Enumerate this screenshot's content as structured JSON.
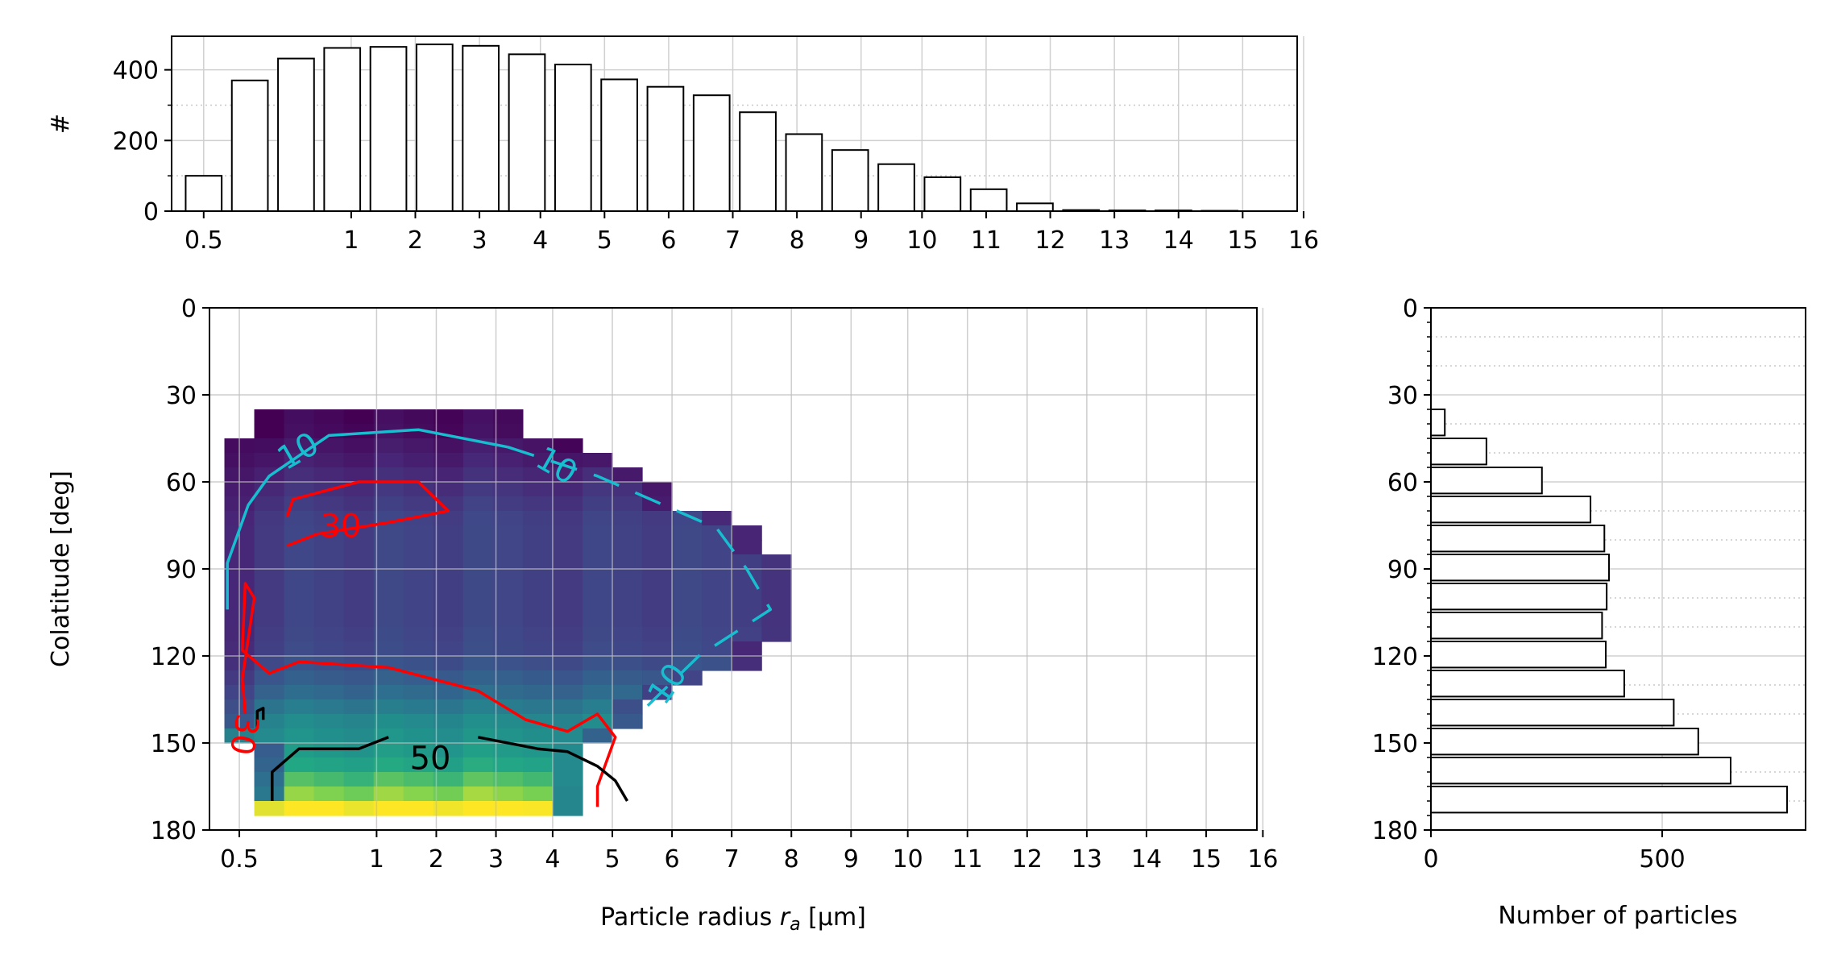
{
  "x_tick_labels": [
    "0.5",
    "1",
    "2",
    "3",
    "4",
    "5",
    "6",
    "7",
    "8",
    "9",
    "10",
    "11",
    "12",
    "13",
    "14",
    "15",
    "16"
  ],
  "chart_data": [
    {
      "id": "top",
      "type": "bar",
      "ylabel": "#",
      "xlabel": "",
      "ylim": [
        0,
        495
      ],
      "yticks": [
        0,
        200,
        400
      ],
      "grid": true,
      "x": [
        0.5,
        0.75,
        1.0,
        1.25,
        1.5,
        1.75,
        2.0,
        2.25,
        2.5,
        2.75,
        3.0,
        3.25,
        3.5,
        3.75,
        4.0,
        4.25,
        4.5,
        4.75,
        5.0,
        5.25,
        5.5,
        5.75,
        6.0,
        6.25,
        6.5,
        6.75,
        7.0,
        7.25,
        7.5,
        7.75,
        8.0,
        8.25,
        8.5,
        8.75,
        9.0,
        9.25,
        9.5,
        9.75,
        10.0,
        10.25,
        10.5,
        10.75,
        11.0,
        11.25,
        11.5,
        11.75,
        12.0,
        12.25,
        12.5,
        12.75,
        13.0,
        13.25,
        13.5,
        13.75,
        14.0,
        14.25,
        14.5,
        14.75,
        15.0,
        15.25,
        15.5,
        15.75,
        16.0,
        16.25,
        16.5,
        16.75,
        17.0
      ],
      "values": [
        100,
        370,
        432,
        462,
        465,
        472,
        468,
        444,
        415,
        373,
        352,
        328,
        280,
        218,
        173,
        133,
        96,
        62,
        22,
        3,
        2,
        2,
        1,
        1,
        1,
        1,
        1,
        1,
        1,
        1,
        1,
        1,
        1,
        1,
        1,
        1,
        1,
        1,
        1,
        1,
        1,
        1,
        1,
        1,
        1,
        1,
        1,
        1,
        1,
        1,
        1,
        1,
        1,
        1,
        1,
        1,
        1,
        1,
        1,
        1,
        1,
        1,
        1,
        1,
        1,
        1,
        1
      ]
    },
    {
      "id": "main",
      "type": "heatmap",
      "xlabel": "Particle radius",
      "xlabel_symbol": "r",
      "xlabel_sub": "a",
      "xlabel_unit": "[µm]",
      "ylabel": "Colatitude [deg]",
      "ylim": [
        0,
        180
      ],
      "yticks": [
        0,
        30,
        60,
        90,
        120,
        150,
        180
      ],
      "grid": true,
      "colormap": "viridis",
      "x_cell_width": 0.5,
      "y_cell_height": 5,
      "rows": [
        {
          "y": [
            35,
            40
          ],
          "x": [
            0.75,
            5.25
          ],
          "v": 0.02
        },
        {
          "y": [
            40,
            45
          ],
          "x": [
            0.75,
            5.25
          ],
          "v": 0.03
        },
        {
          "y": [
            45,
            50
          ],
          "x": [
            0.25,
            6.25
          ],
          "v": 0.07
        },
        {
          "y": [
            50,
            55
          ],
          "x": [
            0.25,
            6.75
          ],
          "v": 0.1
        },
        {
          "y": [
            55,
            60
          ],
          "x": [
            0.25,
            7.25
          ],
          "v": 0.14
        },
        {
          "y": [
            60,
            65
          ],
          "x": [
            0.25,
            7.75
          ],
          "v": 0.17
        },
        {
          "y": [
            65,
            70
          ],
          "x": [
            0.25,
            7.75
          ],
          "v": 0.2
        },
        {
          "y": [
            70,
            75
          ],
          "x": [
            0.25,
            8.75
          ],
          "v": 0.23
        },
        {
          "y": [
            75,
            80
          ],
          "x": [
            0.25,
            9.25
          ],
          "v": 0.24
        },
        {
          "y": [
            80,
            85
          ],
          "x": [
            0.25,
            9.25
          ],
          "v": 0.24
        },
        {
          "y": [
            85,
            90
          ],
          "x": [
            0.25,
            9.75
          ],
          "v": 0.24
        },
        {
          "y": [
            90,
            95
          ],
          "x": [
            0.25,
            9.75
          ],
          "v": 0.24
        },
        {
          "y": [
            95,
            100
          ],
          "x": [
            0.25,
            9.75
          ],
          "v": 0.24
        },
        {
          "y": [
            100,
            105
          ],
          "x": [
            0.25,
            9.75
          ],
          "v": 0.24
        },
        {
          "y": [
            105,
            110
          ],
          "x": [
            0.25,
            9.75
          ],
          "v": 0.24
        },
        {
          "y": [
            110,
            115
          ],
          "x": [
            0.25,
            9.75
          ],
          "v": 0.25
        },
        {
          "y": [
            115,
            120
          ],
          "x": [
            0.25,
            9.25
          ],
          "v": 0.26
        },
        {
          "y": [
            120,
            125
          ],
          "x": [
            0.25,
            9.25
          ],
          "v": 0.3
        },
        {
          "y": [
            125,
            130
          ],
          "x": [
            0.25,
            8.25
          ],
          "v": 0.36
        },
        {
          "y": [
            130,
            135
          ],
          "x": [
            0.25,
            7.75
          ],
          "v": 0.42
        },
        {
          "y": [
            135,
            140
          ],
          "x": [
            0.25,
            7.25
          ],
          "v": 0.5
        },
        {
          "y": [
            140,
            145
          ],
          "x": [
            0.25,
            7.25
          ],
          "v": 0.58
        },
        {
          "y": [
            145,
            150
          ],
          "x": [
            0.25,
            6.75
          ],
          "v": 0.62
        },
        {
          "y": [
            150,
            155
          ],
          "x": [
            0.75,
            6.25
          ],
          "v": 0.66
        },
        {
          "y": [
            155,
            160
          ],
          "x": [
            0.75,
            6.25
          ],
          "v": 0.72
        },
        {
          "y": [
            160,
            165
          ],
          "x": [
            0.75,
            6.25
          ],
          "v": 0.8
        },
        {
          "y": [
            165,
            170
          ],
          "x": [
            0.75,
            6.25
          ],
          "v": 0.88
        },
        {
          "y": [
            170,
            175
          ],
          "x": [
            0.75,
            6.25
          ],
          "v": 0.95
        }
      ],
      "contours": [
        {
          "level": "10",
          "label": "10",
          "color": "#17becf",
          "dashed": false,
          "points": [
            [
              0.3,
              104
            ],
            [
              0.3,
              88
            ],
            [
              0.65,
              68
            ],
            [
              1.0,
              58
            ],
            [
              2.0,
              44
            ],
            [
              3.5,
              42
            ],
            [
              5.0,
              48
            ]
          ]
        },
        {
          "level": "10",
          "label": "10",
          "color": "#17becf",
          "dashed": true,
          "points": [
            [
              5.0,
              48
            ],
            [
              6.5,
              58
            ],
            [
              7.5,
              67
            ],
            [
              8.5,
              76
            ],
            [
              9.0,
              90
            ],
            [
              9.4,
              104
            ],
            [
              8.2,
              120
            ],
            [
              7.3,
              138
            ]
          ]
        },
        {
          "level": "30",
          "label": "30",
          "color": "#ff0000",
          "dashed": false,
          "points": [
            [
              1.3,
              72
            ],
            [
              1.4,
              66
            ],
            [
              2.5,
              60
            ],
            [
              3.5,
              60
            ],
            [
              4.0,
              70
            ],
            [
              3.0,
              74
            ],
            [
              1.8,
              78
            ],
            [
              1.3,
              82
            ]
          ]
        },
        {
          "level": "30",
          "label": "30",
          "color": "#ff0000",
          "dashed": false,
          "points": [
            [
              0.6,
              140
            ],
            [
              0.55,
              128
            ],
            [
              0.75,
              100
            ],
            [
              0.6,
              95
            ],
            [
              0.55,
              118
            ],
            [
              1.0,
              126
            ],
            [
              1.5,
              122
            ],
            [
              3.0,
              124
            ],
            [
              4.5,
              132
            ],
            [
              5.3,
              142
            ],
            [
              6.0,
              146
            ],
            [
              6.5,
              140
            ],
            [
              6.8,
              148
            ],
            [
              6.5,
              165
            ],
            [
              6.5,
              172
            ]
          ]
        },
        {
          "level": "50",
          "label": "50",
          "color": "#000000",
          "dashed": false,
          "points": [
            [
              1.05,
              170
            ],
            [
              1.05,
              160
            ],
            [
              1.5,
              152
            ],
            [
              2.5,
              152
            ],
            [
              3.0,
              148
            ]
          ]
        },
        {
          "level": "50",
          "label": "50",
          "color": "#000000",
          "dashed": false,
          "points": [
            [
              4.5,
              148
            ],
            [
              5.5,
              152
            ],
            [
              6.0,
              153
            ],
            [
              6.5,
              158
            ],
            [
              6.8,
              163
            ],
            [
              7.0,
              170
            ]
          ]
        },
        {
          "level": "30",
          "label": "",
          "color": "#000000",
          "dashed": false,
          "points": [
            [
              0.8,
              145
            ],
            [
              0.8,
              139
            ],
            [
              0.9,
              138
            ],
            [
              0.9,
              142
            ]
          ]
        }
      ],
      "contour_labels": [
        {
          "text": "10",
          "x": 1.5,
          "y": 50,
          "rotate": -30,
          "color": "#17becf"
        },
        {
          "text": "10",
          "x": 5.8,
          "y": 55,
          "rotate": 30,
          "color": "#17becf"
        },
        {
          "text": "10",
          "x": 7.7,
          "y": 130,
          "rotate": -55,
          "color": "#17becf"
        },
        {
          "text": "30",
          "x": 2.2,
          "y": 76,
          "rotate": 0,
          "color": "#ff0000"
        },
        {
          "text": "30",
          "x": 0.55,
          "y": 147,
          "rotate": 100,
          "color": "#ff0000"
        },
        {
          "text": "50",
          "x": 3.7,
          "y": 156,
          "rotate": 0,
          "color": "#000000"
        }
      ]
    },
    {
      "id": "right",
      "type": "barh",
      "xlabel": "Number of particles",
      "ylabel": "",
      "xlim": [
        0,
        810
      ],
      "xticks": [
        0,
        500
      ],
      "ylim": [
        0,
        180
      ],
      "yticks": [
        0,
        30,
        60,
        90,
        120,
        150,
        180
      ],
      "grid": true,
      "bin_height": 10,
      "bins": [
        {
          "y": [
            35,
            45
          ],
          "value": 30
        },
        {
          "y": [
            45,
            55
          ],
          "value": 120
        },
        {
          "y": [
            55,
            65
          ],
          "value": 240
        },
        {
          "y": [
            65,
            75
          ],
          "value": 345
        },
        {
          "y": [
            75,
            85
          ],
          "value": 375
        },
        {
          "y": [
            85,
            95
          ],
          "value": 385
        },
        {
          "y": [
            95,
            105
          ],
          "value": 380
        },
        {
          "y": [
            105,
            115
          ],
          "value": 370
        },
        {
          "y": [
            115,
            125
          ],
          "value": 378
        },
        {
          "y": [
            125,
            135
          ],
          "value": 418
        },
        {
          "y": [
            135,
            145
          ],
          "value": 525
        },
        {
          "y": [
            145,
            155
          ],
          "value": 578
        },
        {
          "y": [
            155,
            165
          ],
          "value": 648
        },
        {
          "y": [
            165,
            175
          ],
          "value": 770
        }
      ]
    }
  ]
}
